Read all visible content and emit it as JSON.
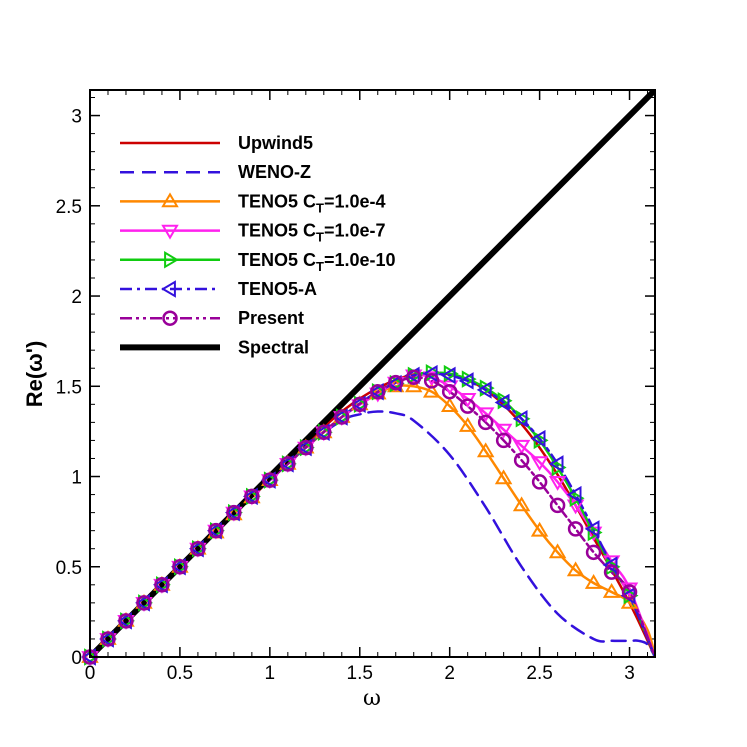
{
  "chart_data": {
    "type": "line",
    "title": "",
    "xlabel": "ω",
    "ylabel": "Re(ω')",
    "xlim": [
      0,
      3.14159
    ],
    "ylim": [
      0,
      3.14159
    ],
    "xticks": [
      0,
      0.5,
      1,
      1.5,
      2,
      2.5,
      3
    ],
    "yticks": [
      0,
      0.5,
      1,
      1.5,
      2,
      2.5,
      3
    ],
    "xtick_labels": [
      "0",
      "0.5",
      "1",
      "1.5",
      "2",
      "2.5",
      "3"
    ],
    "ytick_labels": [
      "0",
      "0.5",
      "1",
      "1.5",
      "2",
      "2.5",
      "3"
    ],
    "grid": false,
    "legend_position": "top-left",
    "series": [
      {
        "name": "Upwind5",
        "legend_main": "Upwind5",
        "legend_sub": "",
        "color": "#cc0000",
        "dash": "solid",
        "marker": "none",
        "x": [
          0,
          0.2,
          0.4,
          0.6,
          0.8,
          1.0,
          1.2,
          1.4,
          1.6,
          1.8,
          2.0,
          2.2,
          2.4,
          2.6,
          2.8,
          3.0,
          3.1416
        ],
        "y": [
          0,
          0.2,
          0.4,
          0.6,
          0.8,
          0.993,
          1.18,
          1.36,
          1.49,
          1.565,
          1.565,
          1.48,
          1.29,
          1.01,
          0.66,
          0.3,
          0
        ]
      },
      {
        "name": "WENO-Z",
        "legend_main": "WENO-Z",
        "legend_sub": "",
        "color": "#3311dd",
        "dash": "dashed",
        "marker": "none",
        "x": [
          0,
          0.2,
          0.4,
          0.6,
          0.8,
          1.0,
          1.2,
          1.4,
          1.5,
          1.6,
          1.7,
          1.8,
          2.0,
          2.2,
          2.4,
          2.6,
          2.8,
          2.9,
          3.0,
          3.05,
          3.1,
          3.1416
        ],
        "y": [
          0,
          0.2,
          0.4,
          0.6,
          0.8,
          0.995,
          1.17,
          1.31,
          1.345,
          1.36,
          1.35,
          1.31,
          1.12,
          0.83,
          0.5,
          0.24,
          0.1,
          0.09,
          0.09,
          0.09,
          0.07,
          0
        ]
      },
      {
        "name": "TENO5 CT=1.0e-4",
        "legend_main": "TENO5 C",
        "legend_sub": "T",
        "legend_suffix": "=1.0e-4",
        "color": "#ff8800",
        "dash": "solid",
        "marker": "triangle-up",
        "x": [
          0,
          0.1,
          0.2,
          0.3,
          0.4,
          0.5,
          0.6,
          0.7,
          0.8,
          0.9,
          1.0,
          1.1,
          1.2,
          1.3,
          1.4,
          1.5,
          1.6,
          1.7,
          1.8,
          1.9,
          2.0,
          2.1,
          2.2,
          2.3,
          2.4,
          2.5,
          2.6,
          2.7,
          2.8,
          2.9,
          3.0,
          3.1,
          3.1416
        ],
        "y": [
          0,
          0.1,
          0.2,
          0.3,
          0.4,
          0.5,
          0.6,
          0.69,
          0.79,
          0.885,
          0.98,
          1.07,
          1.16,
          1.245,
          1.33,
          1.4,
          1.46,
          1.5,
          1.5,
          1.47,
          1.39,
          1.28,
          1.14,
          0.99,
          0.84,
          0.7,
          0.58,
          0.48,
          0.41,
          0.36,
          0.3,
          0.15,
          0
        ],
        "marker_x": [
          0,
          0.1,
          0.2,
          0.3,
          0.4,
          0.5,
          0.6,
          0.7,
          0.8,
          0.9,
          1.0,
          1.1,
          1.2,
          1.3,
          1.4,
          1.5,
          1.6,
          1.7,
          1.8,
          1.9,
          2.0,
          2.1,
          2.2,
          2.3,
          2.4,
          2.5,
          2.6,
          2.7,
          2.8,
          2.9,
          3.0
        ]
      },
      {
        "name": "TENO5 CT=1.0e-7",
        "legend_main": "TENO5 C",
        "legend_sub": "T",
        "legend_suffix": "=1.0e-7",
        "color": "#ff22ee",
        "dash": "solid",
        "marker": "triangle-down",
        "x": [
          0,
          0.2,
          0.4,
          0.6,
          0.8,
          1.0,
          1.2,
          1.4,
          1.6,
          1.7,
          1.8,
          1.9,
          2.0,
          2.1,
          2.2,
          2.3,
          2.4,
          2.5,
          2.6,
          2.7,
          2.8,
          2.9,
          3.0,
          3.1416
        ],
        "y": [
          0,
          0.2,
          0.4,
          0.6,
          0.8,
          0.98,
          1.16,
          1.33,
          1.46,
          1.52,
          1.56,
          1.55,
          1.5,
          1.43,
          1.35,
          1.26,
          1.17,
          1.08,
          0.97,
          0.84,
          0.69,
          0.53,
          0.38,
          0
        ],
        "marker_x": [
          0,
          0.1,
          0.2,
          0.3,
          0.4,
          0.5,
          0.6,
          0.7,
          0.8,
          0.9,
          1.0,
          1.1,
          1.2,
          1.3,
          1.4,
          1.5,
          1.6,
          1.7,
          1.8,
          1.9,
          2.0,
          2.1,
          2.2,
          2.3,
          2.4,
          2.5,
          2.6,
          2.7,
          2.8,
          2.9,
          3.0
        ]
      },
      {
        "name": "TENO5 CT=1.0e-10",
        "legend_main": "TENO5 C",
        "legend_sub": "T",
        "legend_suffix": "=1.0e-10",
        "color": "#11cc11",
        "dash": "solid",
        "marker": "triangle-right",
        "x": [
          0,
          0.2,
          0.4,
          0.6,
          0.8,
          1.0,
          1.2,
          1.4,
          1.6,
          1.8,
          1.9,
          2.0,
          2.1,
          2.2,
          2.3,
          2.4,
          2.5,
          2.6,
          2.7,
          2.8,
          2.9,
          3.0,
          3.1416
        ],
        "y": [
          0,
          0.2,
          0.4,
          0.6,
          0.8,
          0.98,
          1.16,
          1.33,
          1.47,
          1.56,
          1.575,
          1.57,
          1.54,
          1.49,
          1.42,
          1.32,
          1.2,
          1.05,
          0.88,
          0.69,
          0.5,
          0.34,
          0
        ],
        "marker_x": [
          0,
          0.1,
          0.2,
          0.3,
          0.4,
          0.5,
          0.6,
          0.7,
          0.8,
          0.9,
          1.0,
          1.1,
          1.2,
          1.3,
          1.4,
          1.5,
          1.6,
          1.7,
          1.8,
          1.9,
          2.0,
          2.1,
          2.2,
          2.3,
          2.4,
          2.5,
          2.6,
          2.7,
          2.8,
          2.9,
          3.0
        ]
      },
      {
        "name": "TENO5-A",
        "legend_main": "TENO5-A",
        "legend_sub": "",
        "color": "#3311dd",
        "dash": "dashdot",
        "marker": "triangle-left",
        "x": [
          0,
          0.2,
          0.4,
          0.6,
          0.8,
          1.0,
          1.2,
          1.4,
          1.6,
          1.8,
          1.9,
          2.0,
          2.1,
          2.2,
          2.3,
          2.4,
          2.5,
          2.6,
          2.7,
          2.8,
          2.9,
          3.0,
          3.1416
        ],
        "y": [
          0,
          0.2,
          0.4,
          0.6,
          0.8,
          0.98,
          1.16,
          1.33,
          1.47,
          1.56,
          1.57,
          1.56,
          1.53,
          1.48,
          1.41,
          1.32,
          1.21,
          1.07,
          0.9,
          0.71,
          0.51,
          0.34,
          0
        ],
        "marker_x": [
          0,
          0.1,
          0.2,
          0.3,
          0.4,
          0.5,
          0.6,
          0.7,
          0.8,
          0.9,
          1.0,
          1.1,
          1.2,
          1.3,
          1.4,
          1.5,
          1.6,
          1.7,
          1.8,
          1.9,
          2.0,
          2.1,
          2.2,
          2.3,
          2.4,
          2.5,
          2.6,
          2.7,
          2.8,
          2.9,
          3.0
        ]
      },
      {
        "name": "Present",
        "legend_main": "Present",
        "legend_sub": "",
        "color": "#990099",
        "dash": "dashdotdot",
        "marker": "circle",
        "x": [
          0,
          0.2,
          0.4,
          0.6,
          0.8,
          1.0,
          1.2,
          1.4,
          1.6,
          1.7,
          1.8,
          1.9,
          2.0,
          2.1,
          2.2,
          2.3,
          2.4,
          2.5,
          2.6,
          2.7,
          2.8,
          2.9,
          3.0,
          3.1416
        ],
        "y": [
          0,
          0.2,
          0.4,
          0.6,
          0.8,
          0.98,
          1.16,
          1.33,
          1.47,
          1.52,
          1.55,
          1.53,
          1.47,
          1.39,
          1.3,
          1.2,
          1.09,
          0.97,
          0.84,
          0.71,
          0.58,
          0.47,
          0.36,
          0
        ],
        "marker_x": [
          0,
          0.1,
          0.2,
          0.3,
          0.4,
          0.5,
          0.6,
          0.7,
          0.8,
          0.9,
          1.0,
          1.1,
          1.2,
          1.3,
          1.4,
          1.5,
          1.6,
          1.7,
          1.8,
          1.9,
          2.0,
          2.1,
          2.2,
          2.3,
          2.4,
          2.5,
          2.6,
          2.7,
          2.8,
          2.9,
          3.0
        ]
      },
      {
        "name": "Spectral",
        "legend_main": "Spectral",
        "legend_sub": "",
        "color": "#000000",
        "dash": "solid",
        "marker": "none",
        "thick": true,
        "x": [
          0,
          3.1416
        ],
        "y": [
          0,
          3.1416
        ]
      }
    ]
  }
}
